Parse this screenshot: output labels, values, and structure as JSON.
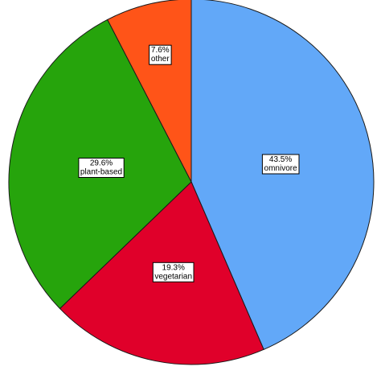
{
  "chart_data": {
    "type": "pie",
    "title": "",
    "start_angle_deg": 0,
    "direction": "clockwise",
    "slices": [
      {
        "percent": 43.5,
        "percent_label": "43.5%",
        "label": "omnivore",
        "color": "#62a8f8"
      },
      {
        "percent": 19.3,
        "percent_label": "19.3%",
        "label": "vegetarian",
        "color": "#e0002a"
      },
      {
        "percent": 29.6,
        "percent_label": "29.6%",
        "label": "plant-based",
        "color": "#26a40c"
      },
      {
        "percent": 7.6,
        "percent_label": "7.6%",
        "label": "other",
        "color": "#ff5418"
      }
    ]
  }
}
